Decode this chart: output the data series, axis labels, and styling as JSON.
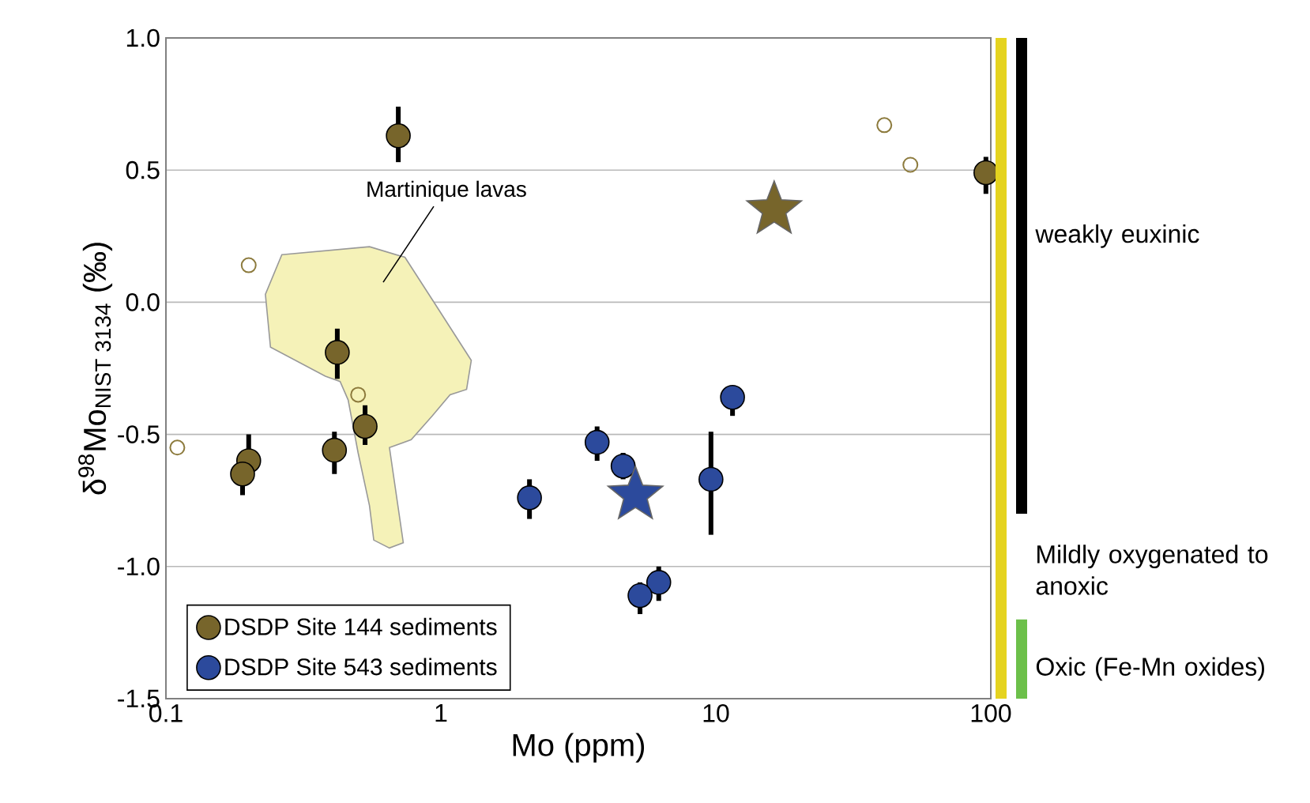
{
  "chart_data": {
    "type": "scatter",
    "xlabel": "Mo (ppm)",
    "ylabel": "δ$^{98}$Mo$_{NIST 3134}$ (‰)",
    "log": "x",
    "xlim": [
      0.1,
      100
    ],
    "xticks": [
      0.1,
      1,
      10,
      100
    ],
    "ylim": [
      -1.5,
      1.0
    ],
    "yticks": [
      {
        "value": -1.5,
        "label": "-1.5"
      },
      {
        "value": -1.0,
        "label": "-1.0"
      },
      {
        "value": -0.5,
        "label": "-0.5"
      },
      {
        "value": 0.0,
        "label": "0.0"
      },
      {
        "value": 0.5,
        "label": "0.5"
      },
      {
        "value": 1.0,
        "label": "1.0"
      }
    ],
    "grid": "y",
    "legend": "bottom left",
    "series": [
      {
        "type": "area",
        "color": "#f5f2b8",
        "x": [
          0.264,
          0.55,
          0.74,
          0.93,
          1.29,
          1.24,
          1.08,
          0.93,
          0.78,
          0.65,
          0.73,
          0.65,
          0.57,
          0.55,
          0.5,
          0.46,
          0.43,
          0.38,
          0.24,
          0.23
        ],
        "values": [
          0.18,
          0.21,
          0.17,
          0.01,
          -0.22,
          -0.33,
          -0.35,
          -0.43,
          -0.52,
          -0.55,
          -0.91,
          -0.93,
          -0.9,
          -0.77,
          -0.57,
          -0.37,
          -0.3,
          -0.28,
          -0.17,
          0.03
        ]
      },
      {
        "name": "DSDP Site 144 sediments",
        "color": "#77652b",
        "marker": "circle",
        "x": [
          0.7,
          0.42,
          0.53,
          0.41,
          0.2,
          0.19,
          96
        ],
        "values": [
          0.63,
          -0.19,
          -0.47,
          -0.56,
          -0.6,
          -0.65,
          0.49
        ],
        "errors": [
          [
            0.53,
            0.74
          ],
          [
            -0.29,
            -0.1
          ],
          [
            -0.54,
            -0.39
          ],
          [
            -0.65,
            -0.49
          ],
          [
            -0.65,
            -0.5
          ],
          [
            -0.73,
            -0.6
          ],
          [
            0.41,
            0.55
          ]
        ]
      },
      {
        "name": "DSDP Site 543 sediments",
        "color": "#2c4a9c",
        "marker": "circle",
        "x": [
          2.1,
          3.7,
          4.6,
          9.6,
          11.5,
          6.2,
          5.3
        ],
        "values": [
          -0.74,
          -0.53,
          -0.62,
          -0.67,
          -0.36,
          -1.06,
          -1.11
        ],
        "errors": [
          [
            -0.82,
            -0.67
          ],
          [
            -0.6,
            -0.47
          ],
          [
            -0.67,
            -0.57
          ],
          [
            -0.88,
            -0.49
          ],
          [
            -0.43,
            -0.36
          ],
          [
            -1.13,
            -1.0
          ],
          [
            -1.18,
            -1.06
          ]
        ]
      },
      {
        "color": "#8c7a3c",
        "marker": "circle",
        "x": [
          0.2,
          0.11,
          0.5,
          41,
          51
        ],
        "values": [
          0.14,
          -0.55,
          -0.35,
          0.67,
          0.52
        ]
      },
      {
        "color": "#77652b",
        "marker": "star",
        "x": [
          16.3
        ],
        "values": [
          0.35
        ]
      },
      {
        "color": "#2c4a9c",
        "marker": "star",
        "x": [
          5.1
        ],
        "values": [
          -0.73
        ]
      }
    ],
    "annotations": [
      "Martinique lavas",
      "weakly euxinic",
      "Mildly oxygenated to anoxic",
      "Oxic (Fe-Mn oxides)"
    ]
  }
}
